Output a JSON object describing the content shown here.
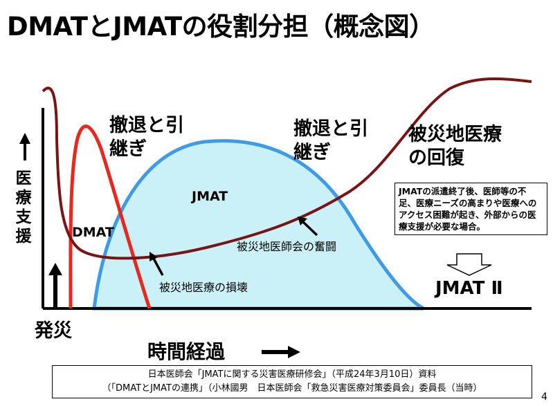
{
  "title": "DMATとJMATの役割分担（概念図）",
  "y_axis_label": [
    "医",
    "療",
    "支",
    "援"
  ],
  "x_axis_label": "時間経過",
  "onset_label": "発災",
  "labels": {
    "handover_1_line1": "撤退と引",
    "handover_1_line2": "継ぎ",
    "handover_2_line1": "撤退と引",
    "handover_2_line2": "継ぎ",
    "recovery_line1": "被災地医療",
    "recovery_line2": "の回復",
    "jmat": "JMAT",
    "dmat": "DMAT",
    "local_association": "被災地医師会の奮闘",
    "local_damage": "被災地医療の損壊",
    "jmat2": "JMAT Ⅱ"
  },
  "note_box": "JMATの派遣終了後、医師等の不足、医療ニーズの高まりや医療へのアクセス困難が起き、外部からの医療支援が必要な場合。",
  "source": {
    "line1": "日本医師会「JMATに関する災害医療研修会」（平成24年3月10日）資料",
    "line2": "（「DMATとJMATの連携」（小林國男　日本医師会「救急災害医療対策委員会」委員長（当時）"
  },
  "page_number": "4",
  "colors": {
    "dmat_curve": "#e8281e",
    "jmat_fill": "#c9f1f7",
    "jmat_stroke": "#3f9be6",
    "local_curve": "#7a1414",
    "axis": "#000000"
  }
}
